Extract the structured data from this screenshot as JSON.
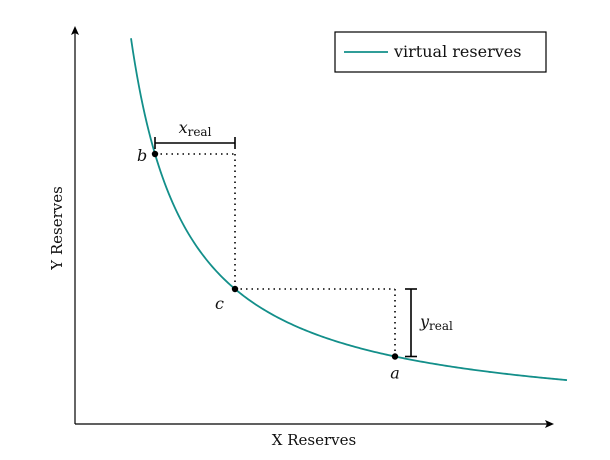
{
  "chart_data": {
    "type": "line",
    "xlabel": "X Reserves",
    "ylabel": "Y Reserves",
    "legend": {
      "position": "top-right",
      "entries": [
        "virtual reserves"
      ]
    },
    "curve_color": "#138f8a",
    "series": [
      {
        "name": "virtual reserves",
        "k": 5.4,
        "x_range": [
          1.4,
          12.3
        ]
      }
    ],
    "points": [
      {
        "label": "b",
        "x": 2.0,
        "y": 2.7
      },
      {
        "label": "c",
        "x": 4.0,
        "y": 1.35
      },
      {
        "label": "a",
        "x": 8.0,
        "y": 0.675
      }
    ],
    "annotations": {
      "x_real": {
        "base": "x",
        "sub": "real"
      },
      "y_real": {
        "base": "y",
        "sub": "real"
      }
    },
    "xlim": [
      0,
      12.0
    ],
    "ylim": [
      0,
      4.0
    ],
    "grid": false
  }
}
